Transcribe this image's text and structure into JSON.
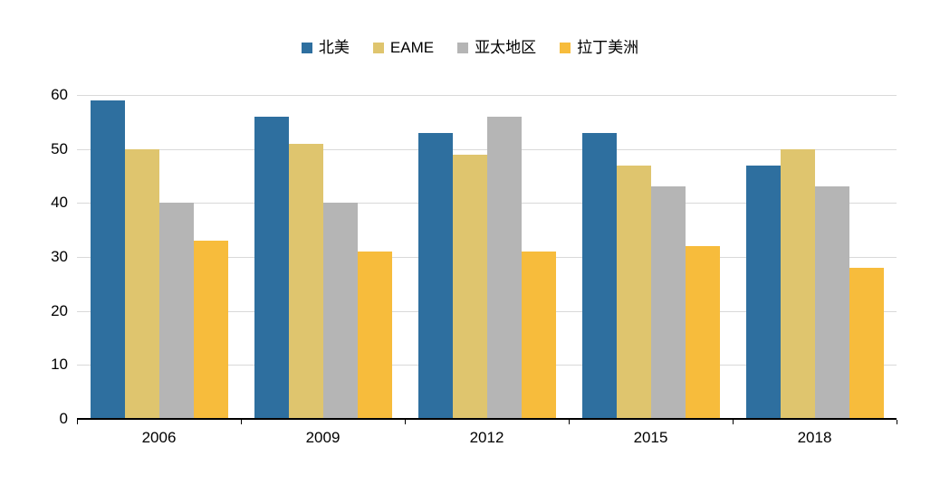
{
  "chart_data": {
    "type": "bar",
    "categories": [
      "2006",
      "2009",
      "2012",
      "2015",
      "2018"
    ],
    "series": [
      {
        "name": "北美",
        "color": "#2E6F9F",
        "values": [
          59,
          56,
          53,
          53,
          47
        ]
      },
      {
        "name": "EAME",
        "color": "#DFC56E",
        "values": [
          50,
          51,
          49,
          47,
          50
        ]
      },
      {
        "name": "亚太地区",
        "color": "#B5B5B5",
        "values": [
          40,
          40,
          56,
          43,
          43
        ]
      },
      {
        "name": "拉丁美洲",
        "color": "#F7BC3C",
        "values": [
          33,
          31,
          31,
          32,
          28
        ]
      }
    ],
    "title": "",
    "xlabel": "",
    "ylabel": "",
    "ylim": [
      0,
      60
    ],
    "ytick_step": 10,
    "grid": true,
    "grid_color": "#d9d9d9",
    "axis_color": "#000000",
    "background_color": "#ffffff",
    "legend_position": "top"
  }
}
